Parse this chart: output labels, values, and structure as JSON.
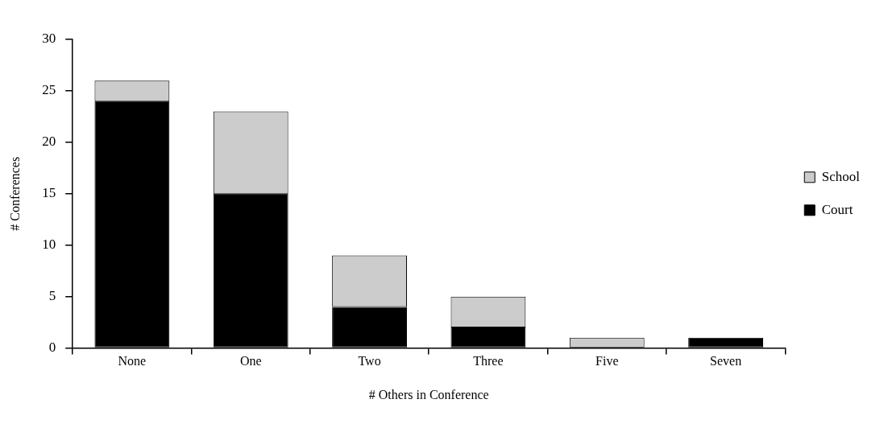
{
  "chart_data": {
    "type": "bar",
    "xlabel": "# Others in Conference",
    "ylabel": "# Conferences",
    "categories": [
      "None",
      "One",
      "Two",
      "Three",
      "Five",
      "Seven"
    ],
    "series": [
      {
        "name": "Court",
        "color": "#000000",
        "values": [
          24,
          15,
          4,
          2,
          0,
          1
        ]
      },
      {
        "name": "School",
        "color": "#cccccc",
        "values": [
          2,
          8,
          5,
          3,
          1,
          0
        ]
      }
    ],
    "stacked": true,
    "ylim": [
      0,
      30
    ],
    "yticks": [
      0,
      5,
      10,
      15,
      20,
      25,
      30
    ],
    "legend": "right"
  }
}
